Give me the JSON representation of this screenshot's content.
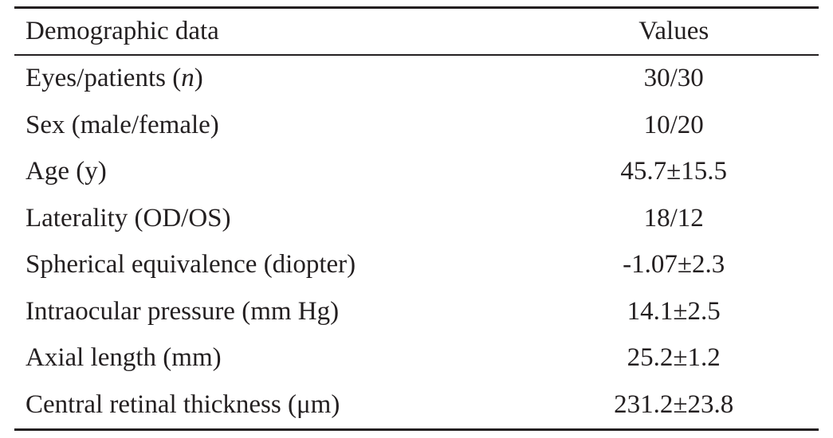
{
  "table": {
    "header": {
      "label": "Demographic data",
      "value": "Values"
    },
    "rows": [
      {
        "label": "Eyes/patients (",
        "label_italic": "n",
        "label_suffix": ")",
        "value": "30/30"
      },
      {
        "label": "Sex (male/female)",
        "value": "10/20"
      },
      {
        "label": "Age (y)",
        "value": "45.7±15.5"
      },
      {
        "label": "Laterality (OD/OS)",
        "value": "18/12"
      },
      {
        "label": "Spherical equivalence (diopter)",
        "value": "-1.07±2.3"
      },
      {
        "label": "Intraocular pressure (mm Hg)",
        "value": "14.1±2.5"
      },
      {
        "label": "Axial length (mm)",
        "value": "25.2±1.2"
      },
      {
        "label": "Central retinal thickness (μm)",
        "value": "231.2±23.8"
      }
    ]
  }
}
